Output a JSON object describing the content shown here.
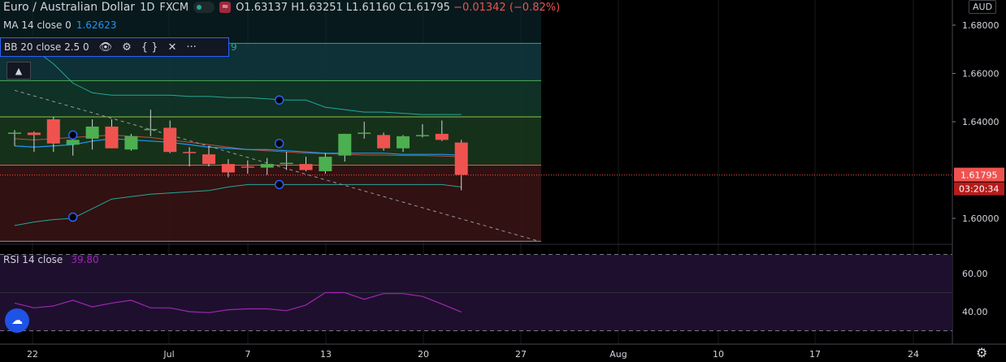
{
  "header": {
    "symbol": "Euro / Australian Dollar",
    "interval": "1D",
    "exchange": "FXCM",
    "open": "O1.63137",
    "high": "H1.63251",
    "low": "L1.61160",
    "close": "C1.61795",
    "change": "−0.01342 (−0.82%)"
  },
  "indicators": {
    "ma_label": "MA 14 close 0",
    "ma_value": "1.62623",
    "bb_label": "BB 20 close 2.5 0",
    "bb_value_tail": "9",
    "rsi_label": "RSI 14 close",
    "rsi_value": "39.80"
  },
  "price_axis": {
    "currency": "AUD",
    "ticks": [
      "1.68000",
      "1.66000",
      "1.64000",
      "1.60000"
    ],
    "last_price": "1.61795",
    "countdown": "03:20:34",
    "rsi_ticks": [
      "60.00",
      "40.00"
    ]
  },
  "time_axis": {
    "labels": [
      "22",
      "Jul",
      "7",
      "13",
      "20",
      "27",
      "Aug",
      "10",
      "17",
      "24"
    ]
  },
  "colors": {
    "up": "#26a69a",
    "up_body": "#4caf50",
    "down": "#ef5350",
    "ma": "#2196f3",
    "bb": "#26a69a",
    "rsi": "#9c27b0",
    "background": "#000000"
  },
  "chart_data": [
    {
      "type": "candlestick",
      "ylim": [
        1.5875,
        1.6835
      ],
      "candles": [
        {
          "o": 1.635,
          "h": 1.6365,
          "l": 1.63,
          "c": 1.6355
        },
        {
          "o": 1.6355,
          "h": 1.636,
          "l": 1.6275,
          "c": 1.6345
        },
        {
          "o": 1.641,
          "h": 1.642,
          "l": 1.6275,
          "c": 1.631
        },
        {
          "o": 1.6305,
          "h": 1.634,
          "l": 1.626,
          "c": 1.6325
        },
        {
          "o": 1.633,
          "h": 1.641,
          "l": 1.6285,
          "c": 1.638
        },
        {
          "o": 1.638,
          "h": 1.641,
          "l": 1.629,
          "c": 1.629
        },
        {
          "o": 1.6285,
          "h": 1.635,
          "l": 1.628,
          "c": 1.634
        },
        {
          "o": 1.6365,
          "h": 1.645,
          "l": 1.634,
          "c": 1.637
        },
        {
          "o": 1.6375,
          "h": 1.6405,
          "l": 1.627,
          "c": 1.6275
        },
        {
          "o": 1.6275,
          "h": 1.6295,
          "l": 1.6215,
          "c": 1.627
        },
        {
          "o": 1.6265,
          "h": 1.63,
          "l": 1.6215,
          "c": 1.6225
        },
        {
          "o": 1.6225,
          "h": 1.6245,
          "l": 1.617,
          "c": 1.619
        },
        {
          "o": 1.6215,
          "h": 1.624,
          "l": 1.6185,
          "c": 1.621
        },
        {
          "o": 1.621,
          "h": 1.625,
          "l": 1.618,
          "c": 1.6225
        },
        {
          "o": 1.6225,
          "h": 1.6275,
          "l": 1.62,
          "c": 1.623
        },
        {
          "o": 1.6225,
          "h": 1.6255,
          "l": 1.6195,
          "c": 1.62
        },
        {
          "o": 1.6195,
          "h": 1.627,
          "l": 1.6185,
          "c": 1.6255
        },
        {
          "o": 1.626,
          "h": 1.635,
          "l": 1.6235,
          "c": 1.635
        },
        {
          "o": 1.6355,
          "h": 1.64,
          "l": 1.633,
          "c": 1.6355
        },
        {
          "o": 1.6345,
          "h": 1.6355,
          "l": 1.628,
          "c": 1.629
        },
        {
          "o": 1.629,
          "h": 1.6345,
          "l": 1.6275,
          "c": 1.634
        },
        {
          "o": 1.634,
          "h": 1.639,
          "l": 1.6335,
          "c": 1.6345
        },
        {
          "o": 1.635,
          "h": 1.6405,
          "l": 1.632,
          "c": 1.6325
        },
        {
          "o": 1.6314,
          "h": 1.6325,
          "l": 1.6116,
          "c": 1.618
        }
      ],
      "ma": [
        1.63,
        1.6295,
        1.63,
        1.6305,
        1.632,
        1.633,
        1.6325,
        1.632,
        1.6315,
        1.6305,
        1.6295,
        1.629,
        1.6285,
        1.6285,
        1.628,
        1.6275,
        1.627,
        1.627,
        1.627,
        1.627,
        1.6265,
        1.6265,
        1.6265,
        1.6262
      ],
      "bb_upper": [
        1.674,
        1.67,
        1.664,
        1.656,
        1.652,
        1.651,
        1.651,
        1.651,
        1.651,
        1.6505,
        1.6505,
        1.65,
        1.65,
        1.6495,
        1.649,
        1.649,
        1.646,
        1.645,
        1.644,
        1.644,
        1.6435,
        1.643,
        1.643,
        1.643
      ],
      "bb_middle": [
        1.633,
        1.6325,
        1.633,
        1.6335,
        1.634,
        1.6345,
        1.634,
        1.6335,
        1.6325,
        1.6315,
        1.6305,
        1.6295,
        1.6285,
        1.628,
        1.6275,
        1.627,
        1.6268,
        1.6265,
        1.6262,
        1.6262,
        1.626,
        1.626,
        1.6258,
        1.6255
      ],
      "bb_lower": [
        1.597,
        1.5985,
        1.5995,
        1.6,
        1.604,
        1.608,
        1.609,
        1.61,
        1.6105,
        1.611,
        1.6115,
        1.613,
        1.614,
        1.614,
        1.614,
        1.614,
        1.614,
        1.614,
        1.614,
        1.614,
        1.614,
        1.614,
        1.614,
        1.613
      ],
      "fib_levels": [
        1.6725,
        1.657,
        1.642,
        1.622,
        1.5905
      ],
      "trendline": {
        "from": [
          0,
          1.653
        ],
        "to": [
          27,
          1.5905
        ]
      },
      "last_price": 1.61795
    },
    {
      "type": "line",
      "name": "RSI 14 close",
      "ylim": [
        25,
        75
      ],
      "values": [
        44.5,
        42,
        43,
        46,
        42.5,
        44.5,
        46,
        42,
        42,
        40,
        39.5,
        41,
        41.5,
        41.5,
        40.5,
        43.5,
        50,
        50,
        46.5,
        49.5,
        49.5,
        48,
        44,
        39.8
      ],
      "bands": [
        70,
        30
      ]
    }
  ]
}
